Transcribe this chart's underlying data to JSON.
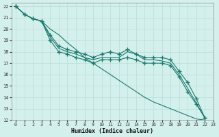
{
  "xlabel": "Humidex (Indice chaleur)",
  "bg_color": "#d4f0ec",
  "grid_color": "#b8ddd8",
  "line_color": "#1a7a6e",
  "xlim": [
    -0.5,
    23
  ],
  "ylim": [
    12,
    22.3
  ],
  "xticks": [
    0,
    1,
    2,
    3,
    4,
    5,
    6,
    7,
    8,
    9,
    10,
    11,
    12,
    13,
    14,
    15,
    16,
    17,
    18,
    19,
    20,
    21,
    22,
    23
  ],
  "yticks": [
    12,
    13,
    14,
    15,
    16,
    17,
    18,
    19,
    20,
    21,
    22
  ],
  "lines": [
    {
      "x": [
        0,
        1,
        2,
        3,
        4,
        5,
        6,
        7,
        8,
        9,
        10,
        11,
        12,
        13,
        14,
        15,
        16,
        17,
        18,
        19,
        20,
        21,
        22
      ],
      "y": [
        22,
        21.3,
        20.9,
        20.7,
        20.0,
        19.5,
        18.8,
        18.2,
        17.5,
        17.0,
        16.5,
        16.0,
        15.5,
        15.0,
        14.5,
        14.0,
        13.6,
        13.3,
        13.0,
        12.7,
        12.4,
        12.1,
        12.0
      ],
      "has_markers": false
    },
    {
      "x": [
        0,
        1,
        2,
        3,
        4,
        5,
        6,
        7,
        8,
        9,
        10,
        11,
        12,
        13,
        14,
        15,
        16,
        17,
        18,
        19,
        20,
        21,
        22
      ],
      "y": [
        22,
        21.3,
        20.9,
        20.7,
        19.5,
        18.5,
        18.2,
        18.0,
        17.8,
        17.5,
        17.8,
        18.0,
        17.8,
        18.2,
        17.8,
        17.5,
        17.5,
        17.5,
        17.3,
        16.3,
        15.3,
        13.9,
        12.2
      ],
      "has_markers": true
    },
    {
      "x": [
        0,
        1,
        2,
        3,
        4,
        5,
        6,
        7,
        8,
        9,
        10,
        11,
        12,
        13,
        14,
        15,
        16,
        17,
        18,
        19,
        20,
        21,
        22
      ],
      "y": [
        22,
        21.3,
        20.9,
        20.7,
        19.3,
        18.3,
        18.0,
        17.8,
        17.5,
        17.3,
        17.5,
        17.5,
        17.5,
        18.0,
        17.8,
        17.3,
        17.3,
        17.2,
        17.0,
        16.0,
        14.8,
        13.5,
        12.2
      ],
      "has_markers": false
    },
    {
      "x": [
        0,
        1,
        2,
        3,
        4,
        5,
        6,
        7,
        8,
        9,
        10,
        11,
        12,
        13,
        14,
        15,
        16,
        17,
        18,
        19,
        20,
        21,
        22
      ],
      "y": [
        22,
        21.3,
        20.9,
        20.7,
        19.0,
        18.0,
        17.8,
        17.5,
        17.3,
        17.0,
        17.3,
        17.3,
        17.3,
        17.5,
        17.3,
        17.0,
        17.0,
        17.0,
        16.8,
        15.8,
        14.5,
        13.4,
        12.2
      ],
      "has_markers": true
    }
  ]
}
